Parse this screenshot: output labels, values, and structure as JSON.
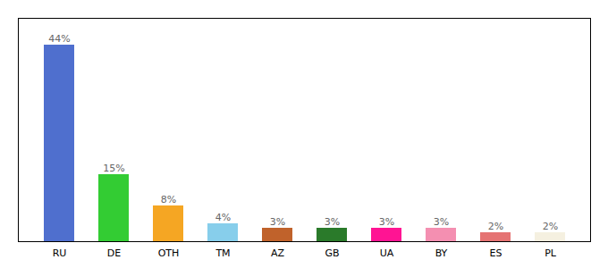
{
  "chart_data": {
    "type": "bar",
    "categories": [
      "RU",
      "DE",
      "OTH",
      "TM",
      "AZ",
      "GB",
      "UA",
      "BY",
      "ES",
      "PL"
    ],
    "values": [
      44,
      15,
      8,
      4,
      3,
      3,
      3,
      3,
      2,
      2
    ],
    "value_labels": [
      "44%",
      "15%",
      "8%",
      "4%",
      "3%",
      "3%",
      "3%",
      "3%",
      "2%",
      "2%"
    ],
    "colors": [
      "#4f6fce",
      "#33cc33",
      "#f5a623",
      "#87ceeb",
      "#c0622b",
      "#2a7a2a",
      "#ff1493",
      "#f48fb1",
      "#e57373",
      "#f5f0e0"
    ],
    "ylim": [
      0,
      50
    ],
    "data_labels": true,
    "tick_labels": "x",
    "grid": false
  }
}
